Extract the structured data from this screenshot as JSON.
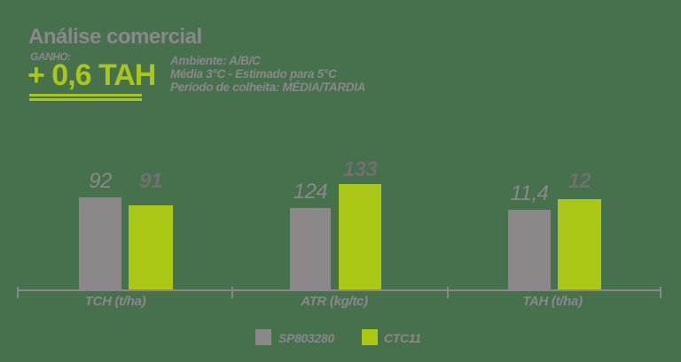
{
  "header": {
    "title": "Análise comercial",
    "gain_label": "GANHO:",
    "gain_value": "+ 0,6 TAH",
    "info_lines": [
      "Ambiente: A/B/C",
      "Média 3°C - Estimado para 5°C",
      "Período de colheita: MÉDIA/TARDIA"
    ]
  },
  "colors": {
    "background": "#47704D",
    "accent_green": "#A9C714",
    "bar_gray": "#8C8889",
    "text_gray": "#8A888C",
    "value_dark": "#707073"
  },
  "chart_data": {
    "type": "bar",
    "title": "Análise comercial",
    "categories": [
      "TCH (t/ha)",
      "ATR (kg/tc)",
      "TAH (t/ha)"
    ],
    "series": [
      {
        "name": "SP803280",
        "color": "#8C8889",
        "values": [
          92,
          124,
          11.4
        ],
        "value_labels": [
          "92",
          "124",
          "11,4"
        ]
      },
      {
        "name": "CTC11",
        "color": "#A9C714",
        "values": [
          91,
          133,
          12
        ],
        "value_labels": [
          "91",
          "133",
          "12"
        ]
      }
    ],
    "legend_position": "bottom",
    "grid": false,
    "value_labels_position": "above-bars"
  }
}
